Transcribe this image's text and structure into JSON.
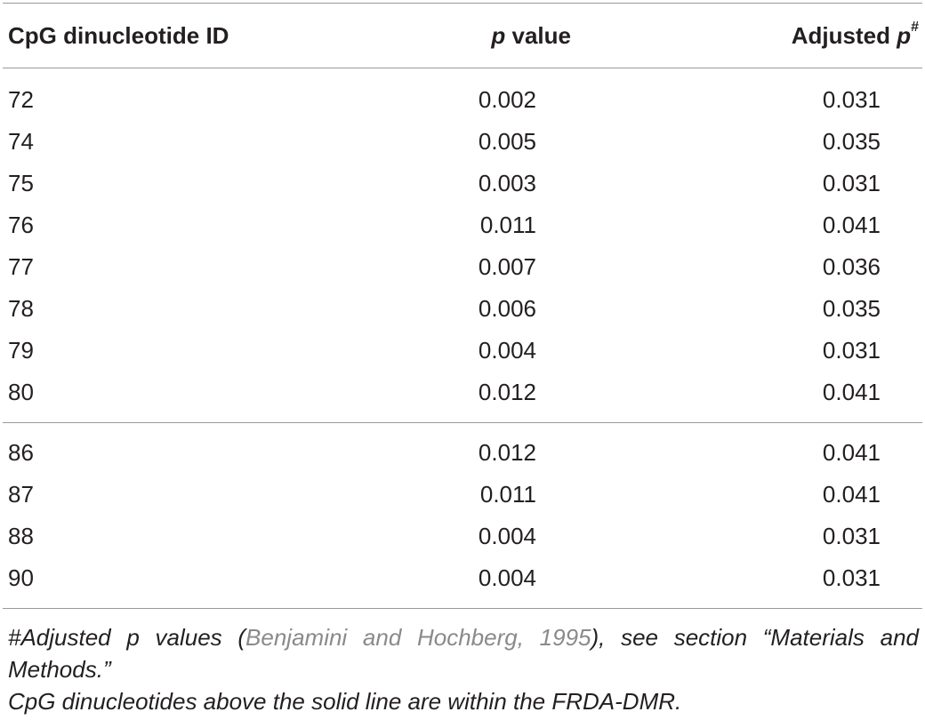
{
  "table": {
    "headers": {
      "col1": "CpG dinucleotide ID",
      "col2_italic": "p",
      "col2_rest": " value",
      "col3_text": "Adjusted ",
      "col3_italic": "p",
      "col3_sup": "#"
    },
    "group_within_dmr": [
      {
        "id": "72",
        "p": "0.002",
        "adj": "0.031"
      },
      {
        "id": "74",
        "p": "0.005",
        "adj": "0.035"
      },
      {
        "id": "75",
        "p": "0.003",
        "adj": "0.031"
      },
      {
        "id": "76",
        "p": "0.011",
        "adj": "0.041"
      },
      {
        "id": "77",
        "p": "0.007",
        "adj": "0.036"
      },
      {
        "id": "78",
        "p": "0.006",
        "adj": "0.035"
      },
      {
        "id": "79",
        "p": "0.004",
        "adj": "0.031"
      },
      {
        "id": "80",
        "p": "0.012",
        "adj": "0.041"
      }
    ],
    "group_outside_dmr": [
      {
        "id": "86",
        "p": "0.012",
        "adj": "0.041"
      },
      {
        "id": "87",
        "p": "0.011",
        "adj": "0.041"
      },
      {
        "id": "88",
        "p": "0.004",
        "adj": "0.031"
      },
      {
        "id": "90",
        "p": "0.004",
        "adj": "0.031"
      }
    ]
  },
  "footnotes": {
    "note1_prefix": "#Adjusted p values (",
    "note1_citation": "Benjamini and Hochberg, 1995",
    "note1_suffix": "), see section “Materials and Methods.”",
    "note2": "CpG dinucleotides above the solid line are within the FRDA-DMR."
  },
  "colors": {
    "text": "#231f20",
    "rule": "#9a9a9a",
    "citation": "#8a8a8a"
  }
}
